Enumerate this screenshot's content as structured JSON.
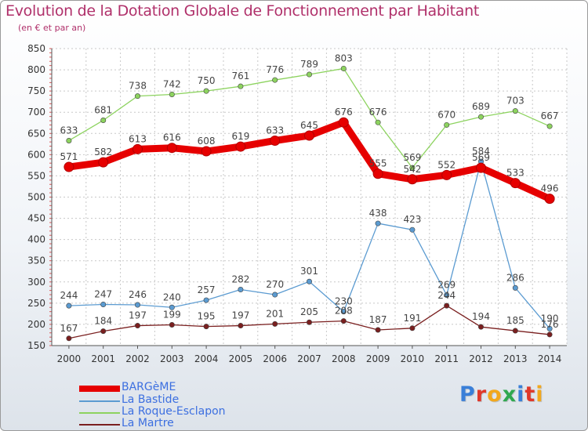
{
  "title": "Evolution de la Dotation Globale de Fonctionnement par Habitant",
  "subtitle": "(en € et par an)",
  "logo_text": "Proxiti",
  "logo_colors": [
    "#3a7fd8",
    "#e0382a",
    "#f2a81d",
    "#2fa84f",
    "#3a7fd8",
    "#e0382a",
    "#f2a81d"
  ],
  "colors": {
    "title": "#b0306a",
    "legend_text": "#3c6fe0",
    "axis": "#555555"
  },
  "chart_data": {
    "type": "line",
    "x": [
      "2000",
      "2001",
      "2002",
      "2003",
      "2004",
      "2005",
      "2006",
      "2007",
      "2008",
      "2009",
      "2010",
      "2011",
      "2012",
      "2013",
      "2014"
    ],
    "yticks": [
      "150",
      "200",
      "250",
      "300",
      "350",
      "400",
      "450",
      "500",
      "550",
      "600",
      "650",
      "700",
      "750",
      "800",
      "850"
    ],
    "ylim": [
      150,
      850
    ],
    "grid": true,
    "legend_position": "bottom-left",
    "series": [
      {
        "name": "BARGèME",
        "color": "#e60000",
        "emphasis": true,
        "values": [
          571,
          582,
          613,
          616,
          608,
          619,
          633,
          645,
          676,
          555,
          542,
          552,
          569,
          533,
          496
        ]
      },
      {
        "name": "La Bastide",
        "color": "#5b9bd1",
        "emphasis": false,
        "values": [
          244,
          247,
          246,
          240,
          257,
          282,
          270,
          301,
          230,
          438,
          423,
          269,
          584,
          286,
          190
        ]
      },
      {
        "name": "La Roque-Esclapon",
        "color": "#8dd35f",
        "emphasis": false,
        "values": [
          633,
          681,
          738,
          742,
          750,
          761,
          776,
          789,
          803,
          676,
          569,
          670,
          689,
          703,
          667
        ]
      },
      {
        "name": "La Martre",
        "color": "#7a1f1f",
        "emphasis": false,
        "values": [
          167,
          184,
          197,
          199,
          195,
          197,
          201,
          205,
          208,
          187,
          191,
          244,
          194,
          185,
          176
        ]
      }
    ]
  }
}
